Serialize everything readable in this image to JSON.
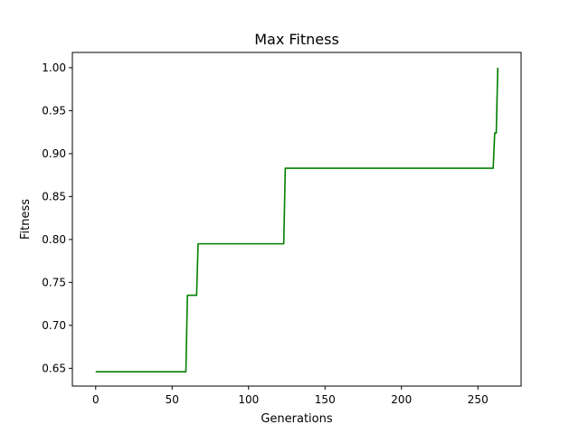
{
  "chart_data": {
    "type": "line",
    "title": "Max Fitness",
    "xlabel": "Generations",
    "ylabel": "Fitness",
    "xlim": [
      -15.25,
      278.25
    ],
    "ylim": [
      0.6293,
      1.0178
    ],
    "x_ticks": [
      0,
      50,
      100,
      150,
      200,
      250
    ],
    "x_tick_labels": [
      "0",
      "50",
      "100",
      "150",
      "200",
      "250"
    ],
    "y_ticks": [
      0.65,
      0.7,
      0.75,
      0.8,
      0.85,
      0.9,
      0.95,
      1.0
    ],
    "y_tick_labels": [
      "0.65",
      "0.70",
      "0.75",
      "0.80",
      "0.85",
      "0.90",
      "0.95",
      "1.00"
    ],
    "grid": false,
    "series": [
      {
        "color": "#008000",
        "x": [
          0,
          59,
          60,
          66,
          67,
          123,
          124,
          260,
          261,
          262,
          263
        ],
        "y": [
          0.646,
          0.646,
          0.735,
          0.735,
          0.795,
          0.795,
          0.883,
          0.883,
          0.924,
          0.924,
          1.0
        ]
      }
    ]
  }
}
